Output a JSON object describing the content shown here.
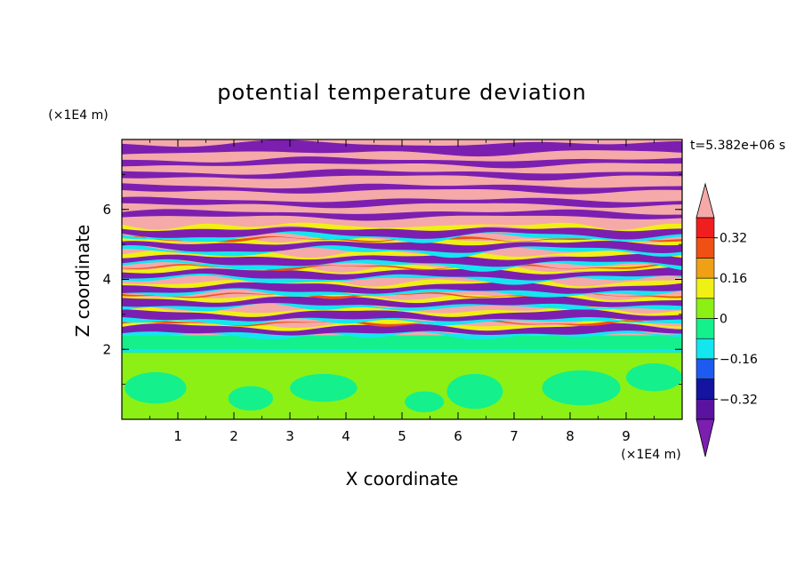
{
  "chart_data": {
    "type": "heatmap",
    "title": "potential temperature deviation",
    "xlabel": "X coordinate",
    "ylabel": "Z coordinate",
    "x_unit": "(×1E4 m)",
    "y_unit": "(×1E4 m)",
    "time_label": "t=5.382e+06 s",
    "xlim": [
      0,
      10
    ],
    "ylim": [
      0,
      8
    ],
    "x_ticks": [
      "1",
      "2",
      "3",
      "4",
      "5",
      "6",
      "7",
      "8",
      "9"
    ],
    "y_ticks": [
      "2",
      "4",
      "6"
    ],
    "colorbar": {
      "levels": [
        -0.4,
        -0.32,
        -0.24,
        -0.16,
        -0.08,
        0,
        0.08,
        0.16,
        0.24,
        0.32,
        0.4
      ],
      "tick_labels": [
        "0.32",
        "0.16",
        "0",
        "−0.16",
        "−0.32"
      ],
      "tick_values": [
        0.32,
        0.16,
        0,
        -0.16,
        -0.32
      ],
      "under_color": "#7c1fb0",
      "over_color": "#f5a9a9",
      "colors": [
        "#5a12a0",
        "#1414a0",
        "#1e5af0",
        "#14e6f0",
        "#14f08c",
        "#8cf014",
        "#f0f014",
        "#f0a014",
        "#f05014",
        "#f01e1e"
      ]
    },
    "regions": [
      {
        "z_range": [
          0,
          1.9
        ],
        "value_range": [
          0.0,
          0.08
        ],
        "note": "lower layer"
      },
      {
        "z_range": [
          1.9,
          2.4
        ],
        "value_range": [
          -0.08,
          0.0
        ]
      },
      {
        "z_range": [
          2.4,
          5.5
        ],
        "value_range": [
          -0.4,
          0.4
        ]
      },
      {
        "z_range": [
          5.5,
          8.0
        ],
        "value_range": [
          -0.4,
          0.4
        ]
      }
    ]
  }
}
